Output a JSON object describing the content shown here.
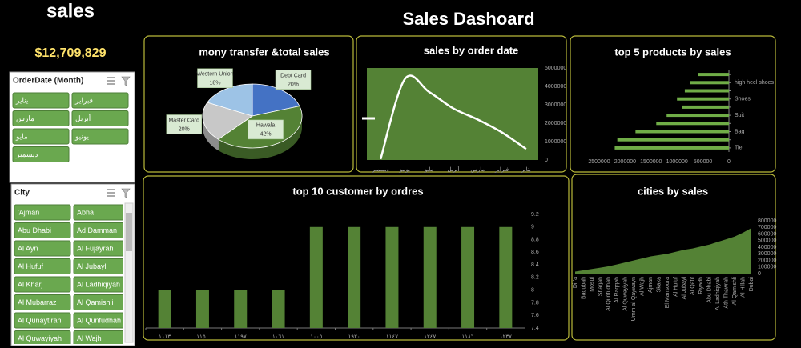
{
  "header": {
    "label": "sales",
    "title": "Sales Dashoard",
    "total": "$12,709,829"
  },
  "slicers": [
    {
      "title": "OrderDate (Month)",
      "items": [
        "يناير",
        "فبراير",
        "مارس",
        "أبريل",
        "مايو",
        "يونيو",
        "ديسمبر"
      ]
    },
    {
      "title": "City",
      "items": [
        "'Ajman",
        "Abha",
        "Abu Dhabi",
        "Ad Damman",
        "Al Ayn",
        "Al Fujayrah",
        "Al Hufuf",
        "Al Jubayl",
        "Al Kharj",
        "Al Ladhiqiyah",
        "Al Mubarraz",
        "Al Qamishli",
        "Al Qunaytirah",
        "Al Qunfudhah",
        "Al Quwayiyah",
        "Al Wajh"
      ]
    }
  ],
  "chart_data": [
    {
      "type": "pie",
      "title": "mony transfer &total sales",
      "categories": [
        "Debt Card",
        "Hawala",
        "Master Card",
        "Western Union"
      ],
      "values": [
        20,
        42,
        20,
        18
      ],
      "value_labels": [
        "20%",
        "42%",
        "20%",
        "18%"
      ],
      "colors": [
        "#4472c4",
        "#548235",
        "#c8c8c8",
        "#9dc3e6"
      ]
    },
    {
      "type": "line",
      "title": "sales by order date",
      "categories": [
        "ديسمبر",
        "يونيو",
        "مايو",
        "أبريل",
        "مارس",
        "فبراير",
        "يناير"
      ],
      "values": [
        50000,
        4400000,
        3700000,
        2800000,
        2200000,
        1500000,
        600000
      ],
      "color": "#ffffff",
      "ylim": [
        0,
        5000000
      ],
      "yticks": [
        0,
        1000000,
        2000000,
        3000000,
        4000000,
        5000000
      ]
    },
    {
      "type": "hbar",
      "title": "top 5 products by sales",
      "categories": [
        null,
        "high heel shoes",
        null,
        "Shoes",
        null,
        "Suit",
        null,
        "Bag",
        null,
        "Tie"
      ],
      "values": [
        600000,
        750000,
        850000,
        1000000,
        900000,
        1200000,
        1400000,
        1800000,
        2150000,
        2200000
      ],
      "color": "#70ad47",
      "xlim": [
        2500000,
        0
      ],
      "xticks": [
        2500000,
        2000000,
        1500000,
        1000000,
        500000,
        0
      ]
    },
    {
      "type": "bar",
      "title": "top 10 customer by ordres",
      "categories": [
        "١١١٣",
        "١١٥٠",
        "١١٩٧",
        "١٠٦١",
        "١٠٠٥",
        "١٩٢٠",
        "١١٤٧",
        "١٢٤٧",
        "١١٨٦",
        "١٢٣٧"
      ],
      "values": [
        8,
        8,
        8,
        8,
        9,
        9,
        9,
        9,
        9,
        9
      ],
      "color": "#548235",
      "ylim": [
        7.4,
        9.2
      ],
      "yticks": [
        7.4,
        7.6,
        7.8,
        8,
        8.2,
        8.4,
        8.6,
        8.8,
        9,
        9.2
      ]
    },
    {
      "type": "area",
      "title": "cities by sales",
      "categories": [
        "Dir'a",
        "Baqubah",
        "Mosul",
        "Sharjah",
        "Al Qunfudhah",
        "Al Raqqah",
        "Al Quwayiyah",
        "Umm al Qaywayn",
        "Al Wajh",
        "Ajman",
        "Skaka",
        "El Mansoura",
        "Al Hufuf",
        "Al Jubayl",
        "Al Qatif",
        "Riyadh",
        "Abu Dhabi",
        "Al Ladhiqiyah",
        "Ath Thawrah",
        "Al Qamishli",
        "Al Hillah",
        "Dubai"
      ],
      "values": [
        30000,
        50000,
        70000,
        90000,
        110000,
        140000,
        170000,
        200000,
        230000,
        260000,
        280000,
        300000,
        330000,
        360000,
        380000,
        410000,
        440000,
        480000,
        520000,
        560000,
        620000,
        690000
      ],
      "color": "#548235",
      "ylim": [
        0,
        800000
      ],
      "yticks": [
        0,
        100000,
        200000,
        300000,
        400000,
        500000,
        600000,
        700000,
        800000
      ]
    }
  ]
}
